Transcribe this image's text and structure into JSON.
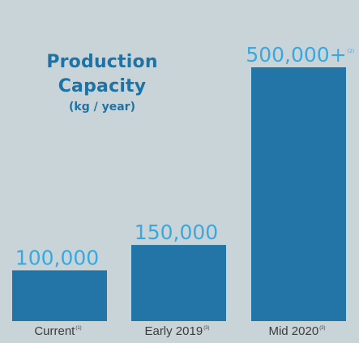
{
  "title": {
    "line1": "Production",
    "line2": "Capacity",
    "subtitle": "(kg / year)"
  },
  "colors": {
    "background": "#c9d4d9",
    "bar": "#2275a6",
    "value_label": "#3aa8de",
    "title": "#1e73a6",
    "category_label": "#3c3c3c"
  },
  "chart_data": {
    "type": "bar",
    "title": "Production Capacity",
    "subtitle": "(kg / year)",
    "xlabel": "",
    "ylabel": "",
    "grid": false,
    "legend": "none",
    "ylim": [
      0,
      500000
    ],
    "categories": [
      "Current",
      "Early 2019",
      "Mid 2020"
    ],
    "category_notes": [
      "(1)",
      "(3)",
      "(3)"
    ],
    "values": [
      100000,
      150000,
      500000
    ],
    "value_labels": [
      "100,000",
      "150,000",
      "500,000+"
    ],
    "value_label_notes": [
      "",
      "",
      "(2)"
    ]
  }
}
